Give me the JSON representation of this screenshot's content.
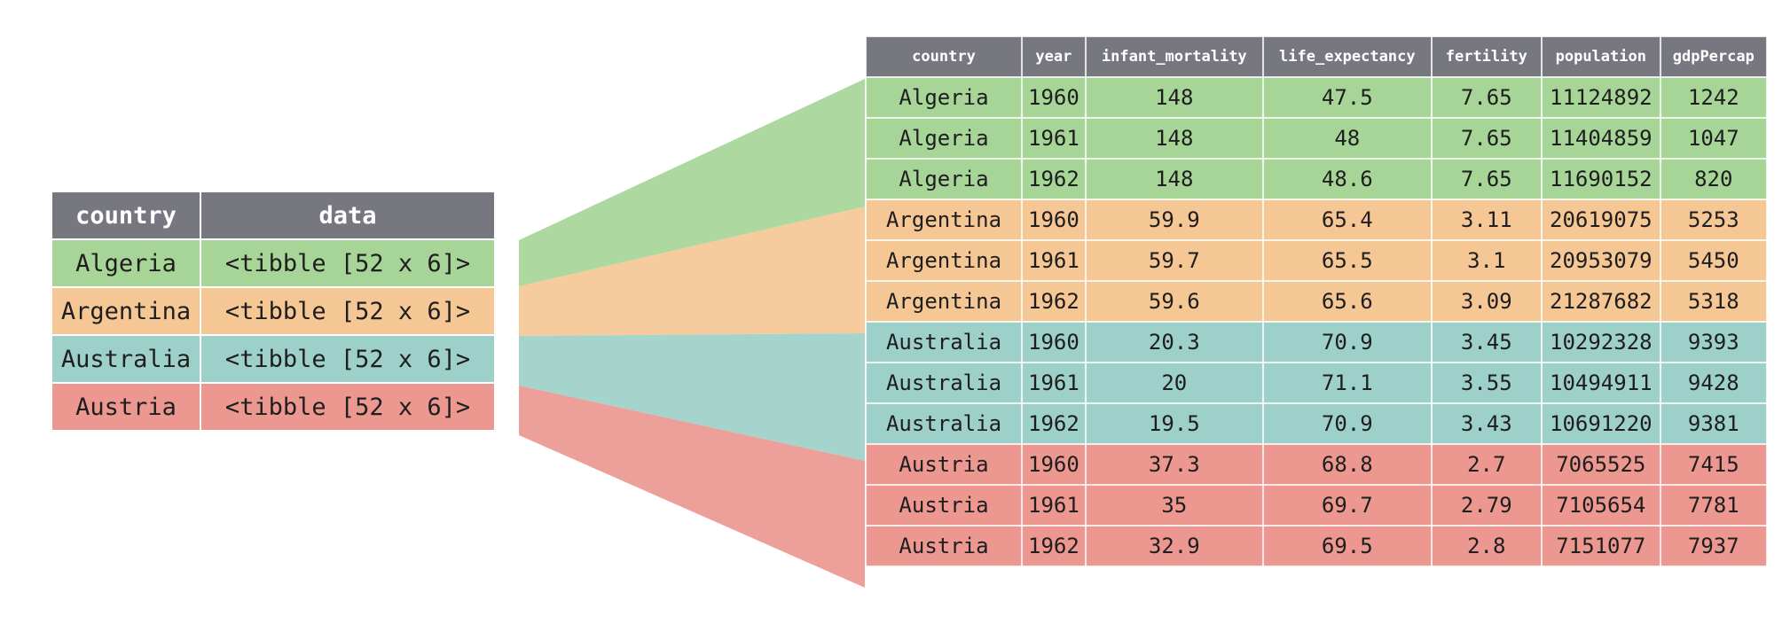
{
  "colors": {
    "header": "#77787f",
    "Algeria": "#a6d597",
    "Argentina": "#f5c795",
    "Australia": "#9dd0c9",
    "Austria": "#ec9891"
  },
  "nested_table": {
    "headers": [
      "country",
      "data"
    ],
    "rows": [
      {
        "country": "Algeria",
        "data": "<tibble [52 x 6]>"
      },
      {
        "country": "Argentina",
        "data": "<tibble [52 x 6]>"
      },
      {
        "country": "Australia",
        "data": "<tibble [52 x 6]>"
      },
      {
        "country": "Austria",
        "data": "<tibble [52 x 6]>"
      }
    ]
  },
  "unnested_table": {
    "headers": [
      "country",
      "year",
      "infant_mortality",
      "life_expectancy",
      "fertility",
      "population",
      "gdpPercap"
    ],
    "rows": [
      [
        "Algeria",
        "1960",
        "148",
        "47.5",
        "7.65",
        "11124892",
        "1242"
      ],
      [
        "Algeria",
        "1961",
        "148",
        "48",
        "7.65",
        "11404859",
        "1047"
      ],
      [
        "Algeria",
        "1962",
        "148",
        "48.6",
        "7.65",
        "11690152",
        "820"
      ],
      [
        "Argentina",
        "1960",
        "59.9",
        "65.4",
        "3.11",
        "20619075",
        "5253"
      ],
      [
        "Argentina",
        "1961",
        "59.7",
        "65.5",
        "3.1",
        "20953079",
        "5450"
      ],
      [
        "Argentina",
        "1962",
        "59.6",
        "65.6",
        "3.09",
        "21287682",
        "5318"
      ],
      [
        "Australia",
        "1960",
        "20.3",
        "70.9",
        "3.45",
        "10292328",
        "9393"
      ],
      [
        "Australia",
        "1961",
        "20",
        "71.1",
        "3.55",
        "10494911",
        "9428"
      ],
      [
        "Australia",
        "1962",
        "19.5",
        "70.9",
        "3.43",
        "10691220",
        "9381"
      ],
      [
        "Austria",
        "1960",
        "37.3",
        "68.8",
        "2.7",
        "7065525",
        "7415"
      ],
      [
        "Austria",
        "1961",
        "35",
        "69.7",
        "2.79",
        "7105654",
        "7781"
      ],
      [
        "Austria",
        "1962",
        "32.9",
        "69.5",
        "2.8",
        "7151077",
        "7937"
      ]
    ]
  }
}
